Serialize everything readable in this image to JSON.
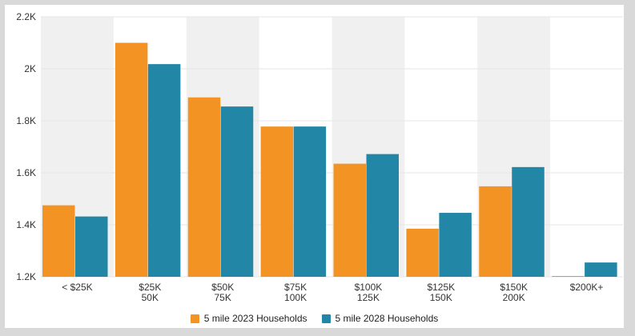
{
  "chart_data": {
    "type": "bar",
    "categories": [
      [
        "< $25K"
      ],
      [
        "$25K",
        "50K"
      ],
      [
        "$50K",
        "75K"
      ],
      [
        "$75K",
        "100K"
      ],
      [
        "$100K",
        "125K"
      ],
      [
        "$125K",
        "150K"
      ],
      [
        "$150K",
        "200K"
      ],
      [
        "$200K+"
      ]
    ],
    "series": [
      {
        "name": "5 mile 2023 Households",
        "color": "#f39323",
        "values": [
          1475,
          2100,
          1890,
          1778,
          1635,
          1385,
          1548,
          1200
        ]
      },
      {
        "name": "5 mile 2028 Households",
        "color": "#2286a6",
        "values": [
          1432,
          2018,
          1855,
          1778,
          1672,
          1446,
          1622,
          1255
        ]
      }
    ],
    "ylim": [
      1200,
      2200
    ],
    "yticks": [
      {
        "value": 1200,
        "label": "1.2K"
      },
      {
        "value": 1400,
        "label": "1.4K"
      },
      {
        "value": 1600,
        "label": "1.6K"
      },
      {
        "value": 1800,
        "label": "1.8K"
      },
      {
        "value": 2000,
        "label": "2K"
      },
      {
        "value": 2200,
        "label": "2.2K"
      }
    ],
    "title": "",
    "xlabel": "",
    "ylabel": "",
    "grid": true,
    "alternating_band_color": "#f0f0f0",
    "legend_position": "bottom"
  },
  "legend": {
    "items": [
      {
        "label": "5 mile 2023 Households",
        "color": "#f39323"
      },
      {
        "label": "5 mile 2028 Households",
        "color": "#2286a6"
      }
    ]
  }
}
